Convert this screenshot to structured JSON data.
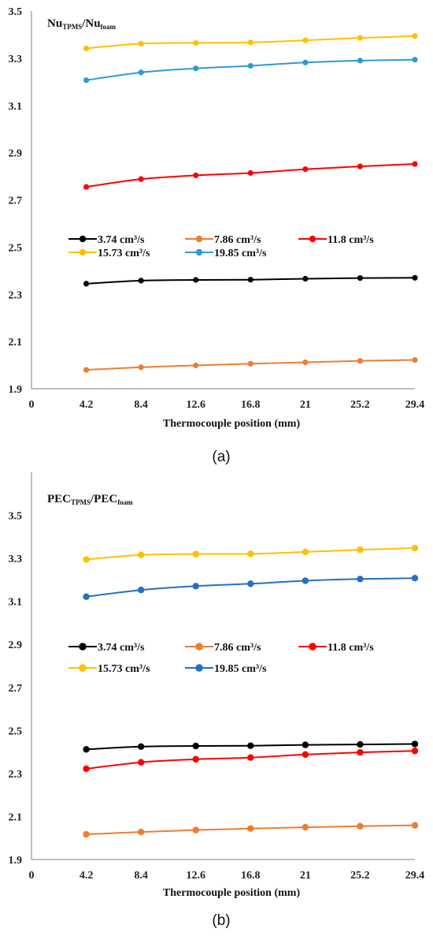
{
  "chart_data": [
    {
      "type": "line",
      "panel_label": "(a)",
      "title": {
        "main1": "Nu",
        "sub1": "TPMS",
        "sep": "/Nu",
        "sub2": "foam"
      },
      "xlabel": "Thermocouple position (mm)",
      "x_ticks": [
        "0",
        "4.2",
        "8.4",
        "12.6",
        "16.8",
        "21",
        "25.2",
        "29.4"
      ],
      "y_ticks": [
        "1.9",
        "2.1",
        "2.3",
        "2.5",
        "2.7",
        "2.9",
        "3.1",
        "3.3",
        "3.5"
      ],
      "xlim": [
        0,
        29.4
      ],
      "ylim": [
        1.9,
        3.5
      ],
      "x": [
        4.2,
        8.4,
        12.6,
        16.8,
        21,
        25.2,
        29.4
      ],
      "legend_position": "middle-left",
      "series": [
        {
          "name": "3.74 cm³/s",
          "color": "#000000",
          "values": [
            2.345,
            2.358,
            2.361,
            2.362,
            2.366,
            2.369,
            2.37
          ]
        },
        {
          "name": "7.86 cm³/s",
          "color": "#ED7D31",
          "values": [
            1.98,
            1.991,
            1.999,
            2.006,
            2.012,
            2.018,
            2.022
          ]
        },
        {
          "name": "11.8 cm³/s",
          "color": "#FF0000",
          "values": [
            2.755,
            2.788,
            2.804,
            2.814,
            2.83,
            2.842,
            2.852
          ]
        },
        {
          "name": "15.73 cm³/s",
          "color": "#FFC000",
          "values": [
            3.342,
            3.362,
            3.365,
            3.367,
            3.376,
            3.386,
            3.394
          ]
        },
        {
          "name": "19.85 cm³/s",
          "color": "#2E9AD6",
          "values": [
            3.207,
            3.24,
            3.257,
            3.268,
            3.282,
            3.29,
            3.294
          ]
        }
      ]
    },
    {
      "type": "line",
      "panel_label": "(b)",
      "title": {
        "main1": "PEC",
        "sub1": "TPMS",
        "sep": "/PEC",
        "sub2": "foam"
      },
      "xlabel": "Thermocouple position (mm)",
      "x_ticks": [
        "0",
        "4.2",
        "8.4",
        "12.6",
        "16.8",
        "21",
        "25.2",
        "29.4"
      ],
      "y_ticks": [
        "1.9",
        "2.1",
        "2.3",
        "2.5",
        "2.7",
        "2.9",
        "3.1",
        "3.3",
        "3.5"
      ],
      "xlim": [
        0,
        29.4
      ],
      "ylim": [
        1.9,
        3.7
      ],
      "x": [
        4.2,
        8.4,
        12.6,
        16.8,
        21,
        25.2,
        29.4
      ],
      "legend_position": "middle-left",
      "series": [
        {
          "name": "3.74 cm³/s",
          "color": "#000000",
          "values": [
            2.412,
            2.425,
            2.428,
            2.429,
            2.433,
            2.435,
            2.437
          ]
        },
        {
          "name": "7.86 cm³/s",
          "color": "#ED7D31",
          "values": [
            2.017,
            2.028,
            2.037,
            2.044,
            2.05,
            2.055,
            2.059
          ]
        },
        {
          "name": "11.8 cm³/s",
          "color": "#FF0000",
          "values": [
            2.322,
            2.352,
            2.366,
            2.374,
            2.388,
            2.398,
            2.405
          ]
        },
        {
          "name": "15.73 cm³/s",
          "color": "#FFC000",
          "values": [
            3.295,
            3.316,
            3.32,
            3.321,
            3.33,
            3.34,
            3.348
          ]
        },
        {
          "name": "19.85 cm³/s",
          "color": "#2570C0",
          "values": [
            3.122,
            3.153,
            3.171,
            3.182,
            3.196,
            3.204,
            3.208
          ]
        }
      ]
    }
  ]
}
